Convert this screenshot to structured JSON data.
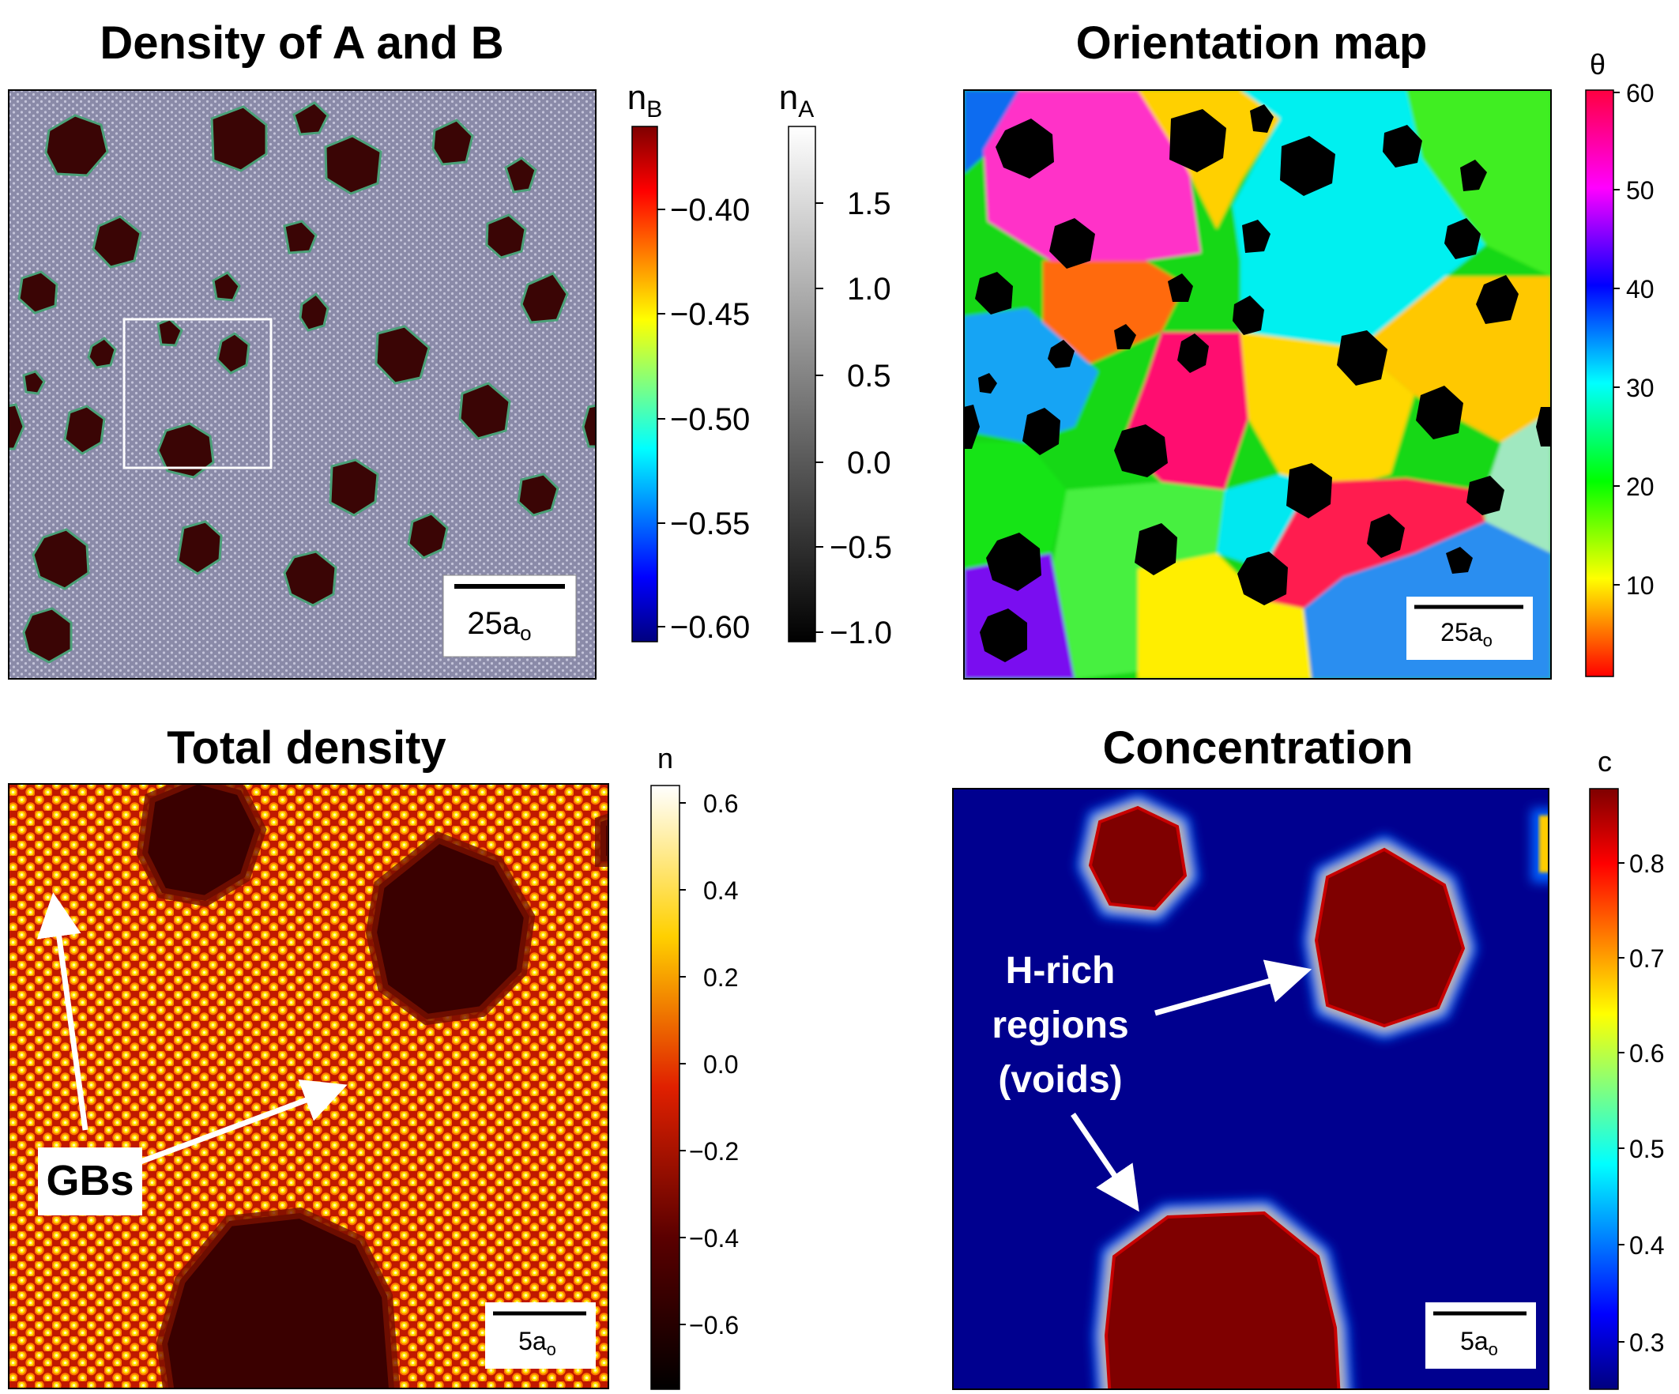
{
  "panels": {
    "density": {
      "title": "Density of A and B",
      "scalebar": "25a",
      "scalebar_sub": "o"
    },
    "orientation": {
      "title": "Orientation map",
      "scalebar": "25a",
      "scalebar_sub": "o"
    },
    "total": {
      "title": "Total density",
      "scalebar": "5a",
      "scalebar_sub": "o",
      "annotation": "GBs"
    },
    "concentration": {
      "title": "Concentration",
      "scalebar": "5a",
      "scalebar_sub": "o",
      "annotation_lines": [
        "H-rich",
        "regions",
        "(voids)"
      ]
    }
  },
  "colorbars": {
    "nB": {
      "label": "n",
      "label_sub": "B",
      "ticks": [
        "−0.40",
        "−0.45",
        "−0.50",
        "−0.55",
        "−0.60"
      ]
    },
    "nA": {
      "label": "n",
      "label_sub": "A",
      "ticks": [
        "1.5",
        "1.0",
        "0.5",
        "0.0",
        "−0.5",
        "−1.0"
      ]
    },
    "theta": {
      "label": "θ",
      "ticks": [
        "60",
        "50",
        "40",
        "30",
        "20",
        "10"
      ]
    },
    "n": {
      "label": "n",
      "ticks": [
        "0.6",
        "0.4",
        "0.2",
        "0.0",
        "−0.2",
        "−0.4",
        "−0.6"
      ]
    },
    "c": {
      "label": "c",
      "ticks": [
        "0.8",
        "0.7",
        "0.6",
        "0.5",
        "0.4",
        "0.3"
      ]
    }
  },
  "colors": {
    "matrix": "#8a8aa8",
    "void": "#3a0505",
    "inset_box": "#ffffff",
    "concentration_bg": "#00008f",
    "concentration_void": "#7f0000"
  }
}
